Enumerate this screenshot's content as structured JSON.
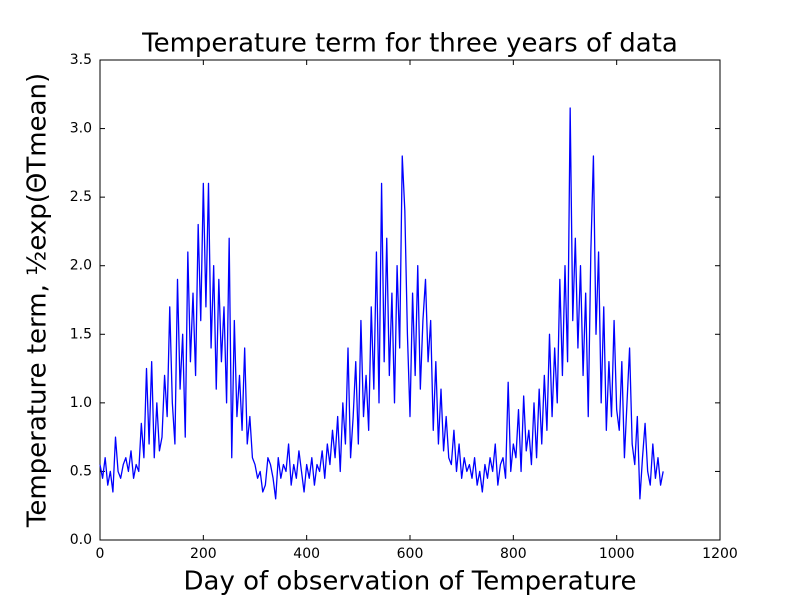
{
  "chart_data": {
    "type": "line",
    "title": "Temperature term for three years of data",
    "x_label": "Day of observation of Temperature",
    "y_label": "Temperature term, ½exp(ΘTmean)",
    "x": [
      0,
      5,
      10,
      15,
      20,
      25,
      30,
      35,
      40,
      45,
      50,
      55,
      60,
      65,
      70,
      75,
      80,
      85,
      90,
      95,
      100,
      105,
      110,
      115,
      120,
      125,
      130,
      135,
      140,
      145,
      150,
      155,
      160,
      165,
      170,
      175,
      180,
      185,
      190,
      195,
      200,
      205,
      210,
      215,
      220,
      225,
      230,
      235,
      240,
      245,
      250,
      255,
      260,
      265,
      270,
      275,
      280,
      285,
      290,
      295,
      300,
      305,
      310,
      315,
      320,
      325,
      330,
      335,
      340,
      345,
      350,
      355,
      360,
      365,
      370,
      375,
      380,
      385,
      390,
      395,
      400,
      405,
      410,
      415,
      420,
      425,
      430,
      435,
      440,
      445,
      450,
      455,
      460,
      465,
      470,
      475,
      480,
      485,
      490,
      495,
      500,
      505,
      510,
      515,
      520,
      525,
      530,
      535,
      540,
      545,
      550,
      555,
      560,
      565,
      570,
      575,
      580,
      585,
      590,
      595,
      600,
      605,
      610,
      615,
      620,
      625,
      630,
      635,
      640,
      645,
      650,
      655,
      660,
      665,
      670,
      675,
      680,
      685,
      690,
      695,
      700,
      705,
      710,
      715,
      720,
      725,
      730,
      735,
      740,
      745,
      750,
      755,
      760,
      765,
      770,
      775,
      780,
      785,
      790,
      795,
      800,
      805,
      810,
      815,
      820,
      825,
      830,
      835,
      840,
      845,
      850,
      855,
      860,
      865,
      870,
      875,
      880,
      885,
      890,
      895,
      900,
      905,
      910,
      915,
      920,
      925,
      930,
      935,
      940,
      945,
      950,
      955,
      960,
      965,
      970,
      975,
      980,
      985,
      990,
      995,
      1000,
      1005,
      1010,
      1015,
      1020,
      1025,
      1030,
      1035,
      1040,
      1045,
      1050,
      1055,
      1060,
      1065,
      1070,
      1075,
      1080,
      1085,
      1090
    ],
    "series": [
      {
        "name": "Temperature term",
        "color": "#0000ff",
        "values": [
          0.55,
          0.45,
          0.6,
          0.4,
          0.5,
          0.35,
          0.75,
          0.5,
          0.45,
          0.55,
          0.6,
          0.5,
          0.65,
          0.45,
          0.55,
          0.5,
          0.85,
          0.6,
          1.25,
          0.7,
          1.3,
          0.6,
          1.0,
          0.65,
          0.75,
          1.2,
          0.9,
          1.7,
          1.0,
          0.7,
          1.9,
          1.1,
          1.5,
          0.75,
          2.1,
          1.3,
          1.8,
          1.2,
          2.3,
          1.6,
          2.6,
          1.7,
          2.6,
          1.4,
          2.0,
          1.1,
          1.9,
          1.3,
          1.7,
          1.0,
          2.2,
          0.6,
          1.6,
          0.9,
          1.2,
          0.8,
          1.4,
          0.7,
          0.9,
          0.6,
          0.55,
          0.45,
          0.5,
          0.35,
          0.4,
          0.6,
          0.55,
          0.45,
          0.3,
          0.6,
          0.45,
          0.55,
          0.5,
          0.7,
          0.4,
          0.55,
          0.45,
          0.65,
          0.5,
          0.35,
          0.55,
          0.45,
          0.6,
          0.4,
          0.55,
          0.5,
          0.65,
          0.45,
          0.7,
          0.55,
          0.8,
          0.6,
          0.9,
          0.5,
          1.0,
          0.7,
          1.4,
          0.6,
          0.9,
          1.3,
          0.7,
          1.6,
          0.9,
          1.2,
          0.8,
          1.7,
          1.1,
          2.1,
          1.0,
          2.6,
          1.3,
          2.2,
          1.2,
          1.8,
          1.0,
          2.0,
          1.4,
          2.8,
          2.4,
          1.5,
          0.9,
          1.8,
          1.2,
          2.0,
          1.1,
          1.6,
          1.9,
          1.3,
          1.6,
          0.8,
          1.3,
          0.7,
          1.1,
          0.65,
          0.9,
          0.6,
          0.55,
          0.8,
          0.5,
          0.7,
          0.45,
          0.6,
          0.5,
          0.55,
          0.45,
          0.6,
          0.4,
          0.5,
          0.35,
          0.55,
          0.45,
          0.6,
          0.5,
          0.7,
          0.4,
          0.55,
          0.6,
          0.45,
          1.15,
          0.5,
          0.7,
          0.6,
          0.95,
          0.5,
          1.05,
          0.65,
          0.8,
          0.55,
          1.0,
          0.6,
          1.1,
          0.7,
          1.2,
          0.8,
          1.5,
          0.9,
          1.4,
          1.0,
          1.9,
          1.2,
          2.0,
          1.3,
          3.15,
          1.6,
          2.2,
          1.4,
          2.0,
          1.2,
          1.8,
          0.9,
          2.1,
          2.8,
          1.5,
          2.1,
          1.0,
          1.7,
          0.8,
          1.3,
          0.9,
          1.6,
          0.95,
          0.8,
          1.3,
          0.6,
          1.0,
          1.4,
          0.7,
          0.55,
          0.9,
          0.3,
          0.6,
          0.85,
          0.5,
          0.4,
          0.7,
          0.45,
          0.6,
          0.4,
          0.5
        ]
      }
    ],
    "xlim": [
      0,
      1200
    ],
    "xticks": [
      0,
      200,
      400,
      600,
      800,
      1000,
      1200
    ],
    "ylim": [
      0,
      3.5
    ],
    "yticks": [
      {
        "value": 0,
        "label": "0.0"
      },
      0.5,
      {
        "value": 1,
        "label": "1.0"
      },
      1.5,
      {
        "value": 2,
        "label": "2.0"
      },
      2.5,
      {
        "value": 3,
        "label": "3.0"
      },
      3.5
    ],
    "grid": false
  }
}
